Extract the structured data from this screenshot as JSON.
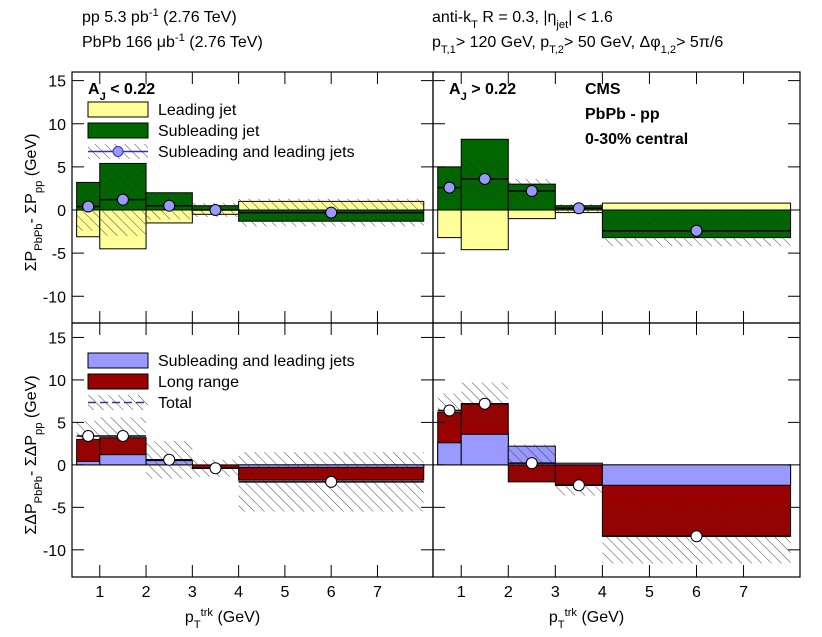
{
  "header": {
    "left": [
      [
        {
          "text": "pp 5.3 pb"
        },
        {
          "text": "-1",
          "shift": "super"
        },
        {
          "text": " (2.76 TeV)"
        }
      ],
      [
        {
          "text": "PbPb 166 μb"
        },
        {
          "text": "-1",
          "shift": "super"
        },
        {
          "text": " (2.76 TeV)"
        }
      ]
    ],
    "right": [
      [
        {
          "text": "anti-k"
        },
        {
          "text": "T",
          "shift": "sub"
        },
        {
          "text": " R = 0.3, |η"
        },
        {
          "text": "jet",
          "shift": "sub"
        },
        {
          "text": "| < 1.6"
        }
      ],
      [
        {
          "text": "p"
        },
        {
          "text": "T,1",
          "shift": "sub"
        },
        {
          "text": "> 120 GeV, p"
        },
        {
          "text": "T,2",
          "shift": "sub"
        },
        {
          "text": "> 50 GeV, Δφ"
        },
        {
          "text": "1,2",
          "shift": "sub"
        },
        {
          "text": "> 5π/6"
        }
      ]
    ]
  },
  "chart_data": [
    {
      "type": "histogram",
      "label": [
        {
          "text": "A"
        },
        {
          "text": "J",
          "shift": "sub"
        },
        {
          "text": " < 0.22"
        }
      ],
      "ylabel": [
        {
          "text": "ΣP"
        },
        {
          "text": "PbPb",
          "shift": "sub"
        },
        {
          "text": "- ΣP"
        },
        {
          "text": "pp",
          "shift": "sub"
        },
        {
          "text": "   (GeV)"
        }
      ],
      "bins": [
        0.5,
        1,
        2,
        3,
        4,
        8
      ],
      "series": [
        {
          "name": "Subleading jet",
          "color": "#006600",
          "values": [
            3.2,
            5.4,
            2.0,
            0.5,
            -1.3
          ]
        },
        {
          "name": "Leading jet",
          "color": "#ffff99",
          "values": [
            -3.1,
            -4.5,
            -1.5,
            -0.5,
            1.0
          ]
        }
      ],
      "points": {
        "name": "Subleading and leading jets",
        "color": "#9999ff",
        "values": [
          0.4,
          1.2,
          0.5,
          0.0,
          -0.3
        ],
        "errors": [
          2.8,
          4.2,
          1.6,
          0.8,
          1.6
        ]
      },
      "legend": true,
      "show_ytick_labels": true,
      "show_xtick_labels": false,
      "xlim": [
        0.4,
        8.2
      ],
      "ylim": [
        -13.1,
        16.0
      ],
      "xticks": [
        1,
        2,
        3,
        4,
        5,
        6,
        7
      ],
      "yticks": [
        -10,
        -5,
        0,
        5,
        10,
        15
      ]
    },
    {
      "type": "histogram",
      "label": [
        {
          "text": "A"
        },
        {
          "text": "J",
          "shift": "sub"
        },
        {
          "text": " > 0.22"
        }
      ],
      "annotations": [
        "CMS",
        "PbPb - pp",
        "0-30% central"
      ],
      "bins": [
        0.5,
        1,
        2,
        3,
        4,
        8
      ],
      "series": [
        {
          "color": "#006600",
          "values": [
            5.0,
            8.2,
            3.0,
            0.5,
            -3.2
          ]
        },
        {
          "color": "#ffff99",
          "values": [
            -3.2,
            -4.6,
            -1.0,
            -0.3,
            0.8
          ]
        }
      ],
      "points": {
        "color": "#9999ff",
        "values": [
          2.6,
          3.6,
          2.2,
          0.2,
          -2.4
        ],
        "errors": [
          1.6,
          2.2,
          1.4,
          0.5,
          1.8
        ]
      },
      "legend": false,
      "show_ytick_labels": false,
      "show_xtick_labels": false,
      "xlim": [
        0.4,
        8.2
      ],
      "ylim": [
        -13.1,
        16.0
      ],
      "xticks": [
        1,
        2,
        3,
        4,
        5,
        6,
        7
      ],
      "yticks": [
        -10,
        -5,
        0,
        5,
        10,
        15
      ]
    },
    {
      "type": "histogram",
      "ylabel": [
        {
          "text": "ΣΔP"
        },
        {
          "text": "PbPb",
          "shift": "sub"
        },
        {
          "text": "- ΣΔP"
        },
        {
          "text": "pp",
          "shift": "sub"
        },
        {
          "text": "   (GeV)"
        }
      ],
      "xlabel": [
        {
          "text": "p"
        },
        {
          "text": "T",
          "shift": "sub"
        },
        {
          "text": "trk",
          "shift": "super"
        },
        {
          "text": "   (GeV)"
        }
      ],
      "bins": [
        0.5,
        1,
        2,
        3,
        4,
        8
      ],
      "series": [
        {
          "name": "Long range",
          "color": "#990000",
          "values": [
            3.0,
            3.2,
            0.1,
            -0.4,
            -1.8
          ]
        },
        {
          "name": "Subleading and leading jets",
          "color": "#9999ff",
          "values": [
            0.4,
            1.2,
            0.5,
            0.0,
            -0.3
          ]
        }
      ],
      "points": {
        "name": "Total",
        "color": "#ffffff",
        "values": [
          3.4,
          3.4,
          0.6,
          -0.4,
          -2.0
        ],
        "errors": [
          1.8,
          2.2,
          2.2,
          1.0,
          3.5
        ]
      },
      "legend": true,
      "show_ytick_labels": true,
      "show_xtick_labels": true,
      "xlim": [
        0.4,
        8.2
      ],
      "ylim": [
        -13.2,
        16.7
      ],
      "xticks": [
        1,
        2,
        3,
        4,
        5,
        6,
        7
      ],
      "yticks": [
        -10,
        -5,
        0,
        5,
        10,
        15
      ]
    },
    {
      "type": "histogram",
      "xlabel": [
        {
          "text": "p"
        },
        {
          "text": "T",
          "shift": "sub"
        },
        {
          "text": "trk",
          "shift": "super"
        },
        {
          "text": "   (GeV)"
        }
      ],
      "bins": [
        0.5,
        1,
        2,
        3,
        4,
        8
      ],
      "series": [
        {
          "color": "#990000",
          "values": [
            6.2,
            7.2,
            -2.0,
            -2.4,
            -8.4
          ]
        },
        {
          "color": "#9999ff",
          "values": [
            2.6,
            3.6,
            2.2,
            0.2,
            -2.4
          ]
        }
      ],
      "points": {
        "color": "#ffffff",
        "values": [
          6.4,
          7.2,
          0.2,
          -2.4,
          -8.4
        ],
        "errors": [
          2.0,
          2.5,
          2.2,
          1.2,
          3.2
        ]
      },
      "legend": false,
      "show_ytick_labels": false,
      "show_xtick_labels": true,
      "xlim": [
        0.4,
        8.2
      ],
      "ylim": [
        -13.2,
        16.7
      ],
      "xticks": [
        1,
        2,
        3,
        4,
        5,
        6,
        7
      ],
      "yticks": [
        -10,
        -5,
        0,
        5,
        10,
        15
      ]
    }
  ]
}
